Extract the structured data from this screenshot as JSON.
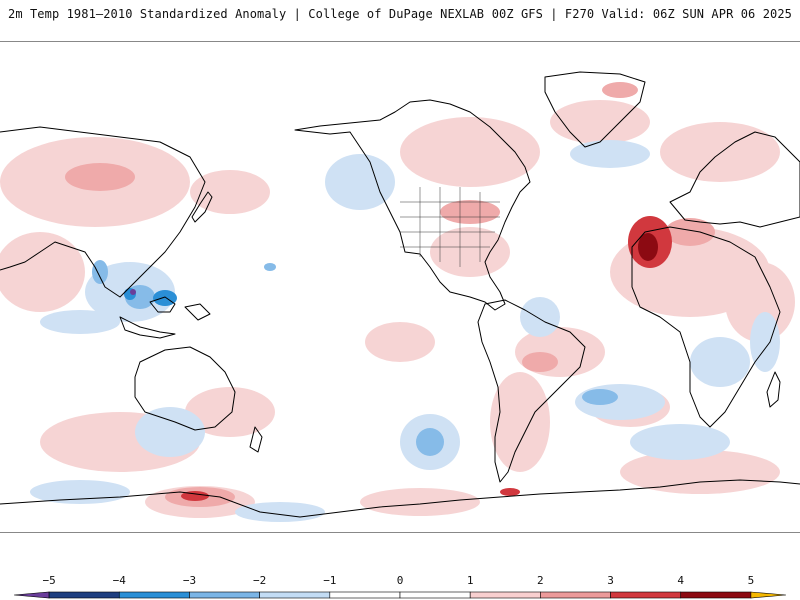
{
  "header": {
    "left_title": "2m Temp 1981–2010 Standardized Anomaly | College of DuPage NEXLAB",
    "right_title": "00Z GFS | F270 Valid: 06Z SUN APR 06 2025"
  },
  "colorbar": {
    "ticks": [
      "−5",
      "−4",
      "−3",
      "−2",
      "−1",
      "0",
      "1",
      "2",
      "3",
      "4",
      "5"
    ],
    "segments": [
      {
        "from": -5.5,
        "to": -5,
        "color": "#6a3d9a"
      },
      {
        "from": -5,
        "to": -4,
        "color": "#1f3f80"
      },
      {
        "from": -4,
        "to": -3,
        "color": "#2b8fd6"
      },
      {
        "from": -3,
        "to": -2,
        "color": "#7bb5e6"
      },
      {
        "from": -2,
        "to": -1,
        "color": "#c3dcf4"
      },
      {
        "from": -1,
        "to": 0,
        "color": "#ffffff"
      },
      {
        "from": 0,
        "to": 1,
        "color": "#ffffff"
      },
      {
        "from": 1,
        "to": 2,
        "color": "#f8cfcf"
      },
      {
        "from": 2,
        "to": 3,
        "color": "#ec9a9a"
      },
      {
        "from": 3,
        "to": 4,
        "color": "#d1383e"
      },
      {
        "from": 4,
        "to": 5,
        "color": "#8c0a12"
      },
      {
        "from": 5,
        "to": 5.5,
        "color": "#f5b800"
      }
    ]
  },
  "map": {
    "variable": "2m temperature standardized anomaly",
    "warm_color": "#f3c4c4",
    "cold_color": "#c9def3",
    "hot_color": "#b0161e",
    "coast_color": "#000000"
  }
}
